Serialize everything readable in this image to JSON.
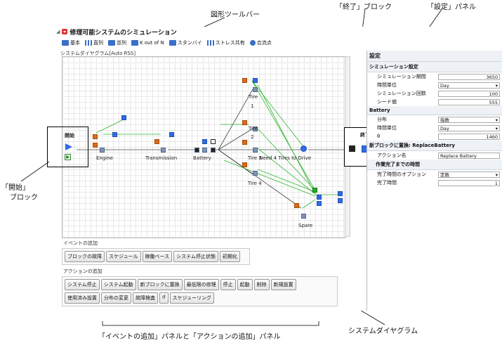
{
  "callouts": {
    "shape_toolbar": "図形ツールバー",
    "end_block": "「終了」ブロック",
    "settings_panel": "「設定」パネル",
    "start_block_line1": "「開始」",
    "start_block_line2": "ブロック",
    "system_diagram": "システムダイヤグラム",
    "event_action_panels": "「イベントの追加」パネルと「アクションの追加」パネル"
  },
  "window": {
    "title": "修理可能システムのシミュレーション"
  },
  "toolbar": {
    "items": [
      "基本",
      "直列",
      "並列",
      "K out of N",
      "スタンバイ",
      "ストレス共有",
      "合流点"
    ]
  },
  "diagram": {
    "header": "システムダイヤグラム[Auto RSS]",
    "start_label": "開始",
    "end_label": "終了",
    "blocks": {
      "engine": "Engine",
      "transmission": "Transmission",
      "battery": "Battery",
      "tire1a": "Tire",
      "tire1b": "1",
      "tire2a": "Tire",
      "tire2b": "2",
      "tire3": "Tire 3",
      "tire4": "Tire 4",
      "need": "Need 4 Tires to Drive",
      "spare": "Spare"
    }
  },
  "events": {
    "header": "イベントの追加",
    "buttons": [
      "ブロックの故障",
      "スケジュール",
      "稼働ベース",
      "システム停止状態",
      "初期化"
    ]
  },
  "actions": {
    "header": "アクションの追加",
    "row1": [
      "システム停止",
      "システム起動",
      "新ブロックに置換",
      "最低限の修理",
      "停止",
      "起動",
      "削除",
      "新規設置"
    ],
    "row2": [
      "使用済み設置",
      "分布の変更",
      "故障検査",
      "If",
      "スケジューリング"
    ]
  },
  "settings": {
    "title": "設定",
    "sim_section": "シミュレーション設定",
    "sim_rows": [
      {
        "label": "シミュレーション期間",
        "value": "3650",
        "type": "input"
      },
      {
        "label": "時間単位",
        "value": "Day",
        "type": "select"
      },
      {
        "label": "シミュレーション回数",
        "value": "100",
        "type": "input"
      },
      {
        "label": "シード値",
        "value": "555",
        "type": "input"
      }
    ],
    "battery_section": "Battery",
    "battery_rows": [
      {
        "label": "分布",
        "value": "指数",
        "type": "select"
      },
      {
        "label": "時間単位",
        "value": "Day",
        "type": "select"
      },
      {
        "label": "θ",
        "value": "1460",
        "type": "input"
      }
    ],
    "replace_section": "新ブロックに置換: ReplaceBattery",
    "action_name_label": "アクション名",
    "action_name_value": "Replace Battery",
    "completion_section": "作業完了までの時間",
    "completion_rows": [
      {
        "label": "完了時間のオプション",
        "value": "定数",
        "type": "select"
      },
      {
        "label": "完了時間",
        "value": "1",
        "type": "input"
      }
    ]
  }
}
